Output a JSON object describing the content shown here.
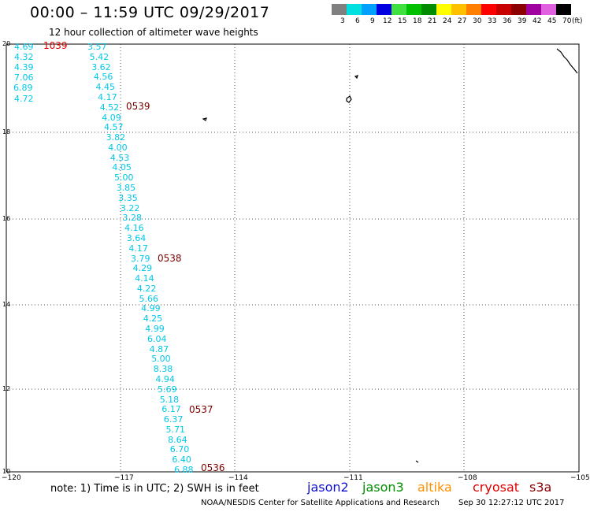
{
  "header": {
    "title": "00:00 – 11:59 UTC 09/29/2017",
    "subtitle": "12 hour collection of altimeter wave heights"
  },
  "legend": {
    "entries": [
      {
        "label": "3",
        "color": "#808080"
      },
      {
        "label": "6",
        "color": "#00e0e0"
      },
      {
        "label": "9",
        "color": "#00a0ff"
      },
      {
        "label": "12",
        "color": "#0000e0"
      },
      {
        "label": "15",
        "color": "#40e040"
      },
      {
        "label": "18",
        "color": "#00c000"
      },
      {
        "label": "21",
        "color": "#008c00"
      },
      {
        "label": "24",
        "color": "#ffff00"
      },
      {
        "label": "27",
        "color": "#ffc000"
      },
      {
        "label": "30",
        "color": "#ff8000"
      },
      {
        "label": "33",
        "color": "#ff0000"
      },
      {
        "label": "36",
        "color": "#c80000"
      },
      {
        "label": "39",
        "color": "#8c0000"
      },
      {
        "label": "42",
        "color": "#a000a0"
      },
      {
        "label": "45",
        "color": "#e060e0"
      },
      {
        "label": "70",
        "color": "#000000"
      }
    ],
    "unit": "(ft)"
  },
  "axes": {
    "lat_labels": [
      "20",
      "18",
      "16",
      "14",
      "12",
      "10"
    ],
    "lon_labels": [
      "−120",
      "−117",
      "−114",
      "−111",
      "−108",
      "−105"
    ]
  },
  "tracks": [
    {
      "color": "#00c8e8",
      "values": [
        "4.69",
        "4.32",
        "4.39",
        "7.06",
        "6.89",
        "4.72"
      ]
    },
    {
      "color": "#00c8e8",
      "values": [
        "3.57",
        "5.42",
        "3.62",
        "4.56",
        "4.45",
        "4.17",
        "4.52",
        "4.09",
        "4.57",
        "3.82",
        "4.00",
        "4.53",
        "4.05",
        "5.00",
        "3.85",
        "3.35",
        "3.22",
        "3.28",
        "4.16",
        "3.64",
        "4.17",
        "3.79",
        "4.29",
        "4.14",
        "4.22",
        "5.66",
        "4.99",
        "4.25",
        "4.99",
        "6.04",
        "4.87",
        "5.00",
        "8.38",
        "4.94",
        "5.69",
        "5.18",
        "6.17",
        "6.37",
        "5.71",
        "8.64",
        "6.70",
        "6.40",
        "6.88"
      ]
    }
  ],
  "pass_times": [
    {
      "label": "1039",
      "style": "red"
    },
    {
      "label": "0539",
      "style": "dark"
    },
    {
      "label": "0538",
      "style": "dark"
    },
    {
      "label": "0537",
      "style": "dark"
    },
    {
      "label": "0536",
      "style": "dark"
    }
  ],
  "footer": {
    "note": "note: 1) Time is in UTC; 2) SWH is in feet",
    "satellites": [
      {
        "name": "jason2",
        "color": "#1010d0"
      },
      {
        "name": "jason3",
        "color": "#009000"
      },
      {
        "name": "altika",
        "color": "#ff9000"
      },
      {
        "name": "cryosat",
        "color": "#e00000"
      },
      {
        "name": "s3a",
        "color": "#8c0000"
      }
    ],
    "credit": "NOAA/NESDIS Center for Satellite Applications and Research",
    "timestamp": "Sep 30 12:27:12 UTC 2017"
  }
}
